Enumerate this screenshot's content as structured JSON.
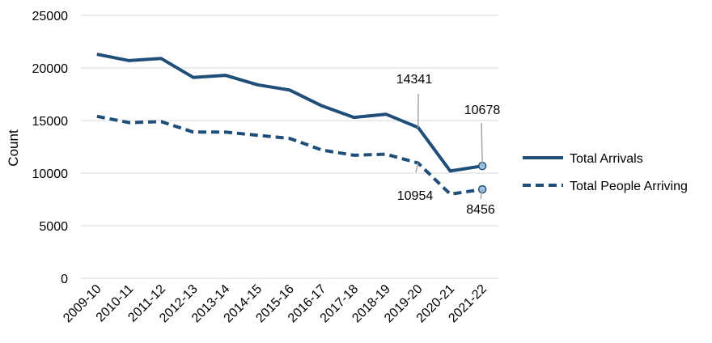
{
  "chart_data": {
    "type": "line",
    "ylabel": "Count",
    "ylim": [
      0,
      25000
    ],
    "yticks": [
      "0",
      "5000",
      "10000",
      "15000",
      "20000",
      "25000"
    ],
    "grid": true,
    "legend_position": "right",
    "categories": [
      "2009-10",
      "2010-11",
      "2011-12",
      "2012-13",
      "2013-14",
      "2014-15",
      "2015-16",
      "2016-17",
      "2017-18",
      "2018-19",
      "2019-20",
      "2020-21",
      "2021-22"
    ],
    "series": [
      {
        "name": "Total Arrivals",
        "style": "solid",
        "color": "#1f4e79",
        "values": [
          21300,
          20700,
          20900,
          19100,
          19300,
          18400,
          17900,
          16400,
          15300,
          15600,
          14341,
          10200,
          10678
        ]
      },
      {
        "name": "Total People Arriving",
        "style": "dashed",
        "color": "#1f4e79",
        "values": [
          15400,
          14800,
          14900,
          13900,
          13900,
          13600,
          13300,
          12200,
          11700,
          11800,
          10954,
          8000,
          8456
        ]
      }
    ],
    "annotations": [
      {
        "text": "14341",
        "series": 0,
        "index": 10
      },
      {
        "text": "10678",
        "series": 0,
        "index": 12
      },
      {
        "text": "10954",
        "series": 1,
        "index": 10
      },
      {
        "text": "8456",
        "series": 1,
        "index": 12
      }
    ]
  }
}
